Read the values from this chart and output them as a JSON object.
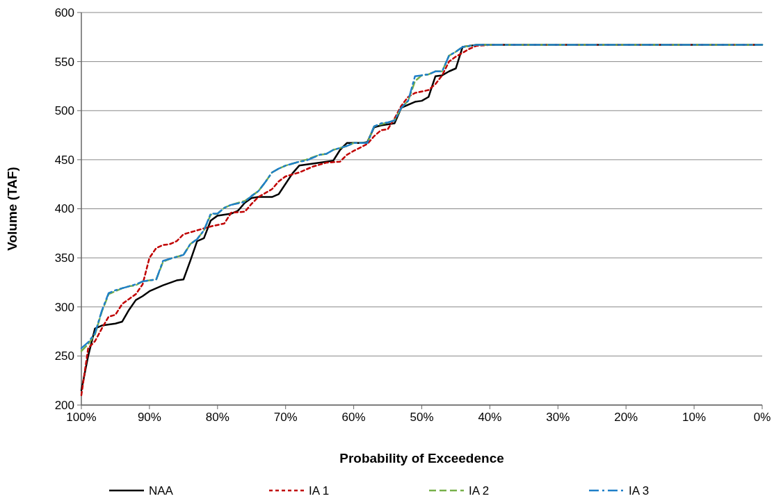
{
  "chart_data": {
    "type": "line",
    "xlabel": "Probability of Exceedence",
    "ylabel": "Volume (TAF)",
    "xlim": [
      100,
      0
    ],
    "xticks": [
      {
        "value": 100,
        "label": "100%"
      },
      {
        "value": 90,
        "label": "90%"
      },
      {
        "value": 80,
        "label": "80%"
      },
      {
        "value": 70,
        "label": "70%"
      },
      {
        "value": 60,
        "label": "60%"
      },
      {
        "value": 50,
        "label": "50%"
      },
      {
        "value": 40,
        "label": "40%"
      },
      {
        "value": 30,
        "label": "30%"
      },
      {
        "value": 20,
        "label": "20%"
      },
      {
        "value": 10,
        "label": "10%"
      },
      {
        "value": 0,
        "label": "0%"
      }
    ],
    "ylim": [
      200,
      600
    ],
    "yticks": [
      200,
      250,
      300,
      350,
      400,
      450,
      500,
      550,
      600
    ],
    "grid": "y",
    "legend": "bottom",
    "marker": "none",
    "series": [
      {
        "name": "NAA",
        "color": "#000000",
        "line_style": "solid",
        "x": [
          100,
          99,
          98,
          97,
          95,
          94,
          93,
          92,
          91,
          90,
          88,
          86,
          85,
          84,
          83,
          82,
          81,
          80,
          78,
          77,
          76,
          75,
          74,
          72,
          71,
          69,
          68,
          66,
          64,
          63,
          62,
          61,
          59,
          58,
          57,
          56,
          54,
          53,
          51,
          50,
          49,
          48,
          47,
          46,
          45,
          44,
          42,
          0
        ],
        "values": [
          215,
          250,
          278,
          281,
          283,
          285,
          297,
          307,
          311,
          316,
          322,
          327,
          328,
          347,
          367,
          370,
          388,
          393,
          395,
          398,
          406,
          411,
          412,
          412,
          415,
          436,
          444,
          446,
          448,
          449,
          460,
          467,
          467,
          468,
          483,
          485,
          487,
          503,
          509,
          510,
          514,
          535,
          536,
          540,
          543,
          565,
          567,
          567
        ]
      },
      {
        "name": "IA 1",
        "color": "#c00000",
        "line_style": "dotted",
        "x": [
          100,
          99,
          98,
          97,
          96,
          95,
          94,
          93,
          92,
          91,
          90,
          89,
          88,
          87,
          86,
          85,
          83,
          81,
          79,
          78,
          76,
          75,
          74,
          72,
          71,
          70,
          68,
          66,
          64,
          62,
          61,
          60,
          58,
          57,
          56,
          55,
          54,
          53,
          52,
          51,
          49,
          48,
          47,
          46,
          45,
          43,
          42,
          40,
          0
        ],
        "values": [
          210,
          258,
          265,
          278,
          290,
          292,
          303,
          308,
          313,
          323,
          350,
          360,
          363,
          364,
          367,
          374,
          378,
          382,
          385,
          396,
          397,
          405,
          412,
          420,
          428,
          433,
          437,
          443,
          447,
          448,
          455,
          459,
          466,
          474,
          480,
          481,
          492,
          505,
          514,
          518,
          521,
          527,
          536,
          550,
          555,
          563,
          566,
          567,
          567
        ]
      },
      {
        "name": "IA 2",
        "color": "#77b04a",
        "line_style": "dashed",
        "x": [
          100,
          99,
          98,
          97,
          96,
          95,
          94,
          93,
          92,
          91,
          90,
          89,
          88,
          87,
          85,
          84,
          83,
          82,
          81,
          80,
          79,
          78,
          76,
          75,
          74,
          73,
          72,
          71,
          70,
          68,
          67,
          65,
          64,
          63,
          62,
          61,
          60,
          58,
          57,
          56,
          55,
          54,
          53,
          52,
          51,
          50,
          49,
          48,
          47,
          46,
          45,
          44,
          43,
          42,
          0
        ],
        "values": [
          255,
          262,
          272,
          295,
          313,
          316,
          319,
          321,
          322,
          326,
          327,
          328,
          346,
          349,
          353,
          364,
          369,
          378,
          394,
          395,
          401,
          404,
          408,
          413,
          418,
          427,
          437,
          441,
          444,
          448,
          450,
          455,
          456,
          460,
          462,
          464,
          467,
          467,
          484,
          486,
          488,
          490,
          503,
          510,
          530,
          536,
          537,
          540,
          540,
          556,
          560,
          565,
          566,
          567,
          567
        ]
      },
      {
        "name": "IA 3",
        "color": "#1f7fc8",
        "line_style": "dashdot",
        "x": [
          100,
          99,
          98,
          97,
          96,
          95,
          94,
          93,
          92,
          91,
          90,
          89,
          88,
          87,
          85,
          84,
          83,
          82,
          81,
          80,
          79,
          78,
          76,
          75,
          74,
          73,
          72,
          71,
          70,
          68,
          67,
          65,
          64,
          63,
          62,
          61,
          60,
          58,
          57,
          56,
          55,
          54,
          53,
          52,
          51,
          50,
          49,
          48,
          47,
          46,
          45,
          44,
          43,
          42,
          0
        ],
        "values": [
          258,
          264,
          273,
          296,
          314,
          317,
          319,
          321,
          323,
          326,
          327,
          328,
          347,
          349,
          353,
          364,
          369,
          378,
          395,
          395,
          401,
          404,
          407,
          413,
          418,
          427,
          437,
          441,
          444,
          448,
          449,
          455,
          456,
          460,
          462,
          464,
          467,
          467,
          484,
          487,
          488,
          490,
          503,
          510,
          535,
          536,
          537,
          540,
          540,
          556,
          560,
          565,
          566,
          567,
          567
        ]
      }
    ]
  }
}
